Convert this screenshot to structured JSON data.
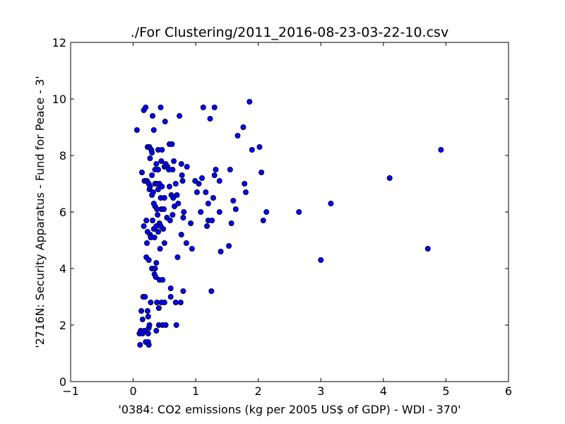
{
  "chart_data": {
    "type": "scatter",
    "title": "./For Clustering/2011_2016-08-23-03-22-10.csv",
    "xlabel": "'0384: CO2 emissions  (kg per 2005 US$ of GDP) - WDI - 370'",
    "ylabel": "'2716N: Security Apparatus - Fund for Peace - 3'",
    "xlim": [
      -1,
      6
    ],
    "ylim": [
      0,
      12
    ],
    "xticks": [
      -1,
      0,
      1,
      2,
      3,
      4,
      5,
      6
    ],
    "yticks": [
      0,
      2,
      4,
      6,
      8,
      10,
      12
    ],
    "grid": false,
    "marker_color": "#0000ff",
    "series": [
      {
        "points": [
          [
            0.06,
            8.9
          ],
          [
            0.1,
            1.7
          ],
          [
            0.11,
            1.3
          ],
          [
            0.12,
            1.8
          ],
          [
            0.13,
            2.5
          ],
          [
            0.14,
            7.4
          ],
          [
            0.15,
            1.7
          ],
          [
            0.15,
            2.2
          ],
          [
            0.16,
            3.0
          ],
          [
            0.17,
            9.6
          ],
          [
            0.17,
            5.5
          ],
          [
            0.18,
            7.1
          ],
          [
            0.18,
            1.8
          ],
          [
            0.19,
            3.0
          ],
          [
            0.2,
            9.7
          ],
          [
            0.2,
            1.4
          ],
          [
            0.21,
            5.7
          ],
          [
            0.21,
            4.4
          ],
          [
            0.22,
            4.9
          ],
          [
            0.22,
            7.1
          ],
          [
            0.23,
            8.3
          ],
          [
            0.23,
            5.3
          ],
          [
            0.23,
            2.5
          ],
          [
            0.24,
            1.7
          ],
          [
            0.24,
            1.4
          ],
          [
            0.24,
            2.3
          ],
          [
            0.25,
            7.0
          ],
          [
            0.25,
            1.9
          ],
          [
            0.25,
            1.3
          ],
          [
            0.25,
            4.3
          ],
          [
            0.26,
            8.3
          ],
          [
            0.26,
            6.8
          ],
          [
            0.26,
            2.0
          ],
          [
            0.27,
            7.9
          ],
          [
            0.27,
            6.9
          ],
          [
            0.27,
            5.2
          ],
          [
            0.28,
            5.1
          ],
          [
            0.28,
            2.8
          ],
          [
            0.29,
            8.2
          ],
          [
            0.3,
            8.1
          ],
          [
            0.3,
            7.3
          ],
          [
            0.3,
            6.6
          ],
          [
            0.3,
            4.0
          ],
          [
            0.31,
            9.4
          ],
          [
            0.31,
            5.7
          ],
          [
            0.32,
            6.7
          ],
          [
            0.33,
            8.9
          ],
          [
            0.33,
            6.3
          ],
          [
            0.33,
            5.4
          ],
          [
            0.34,
            3.8
          ],
          [
            0.34,
            5.1
          ],
          [
            0.35,
            7.5
          ],
          [
            0.35,
            7.0
          ],
          [
            0.35,
            6.2
          ],
          [
            0.35,
            4.0
          ],
          [
            0.36,
            3.7
          ],
          [
            0.37,
            7.7
          ],
          [
            0.37,
            5.5
          ],
          [
            0.37,
            4.2
          ],
          [
            0.37,
            1.8
          ],
          [
            0.38,
            7.0
          ],
          [
            0.38,
            6.1
          ],
          [
            0.38,
            2.8
          ],
          [
            0.39,
            5.9
          ],
          [
            0.4,
            8.2
          ],
          [
            0.4,
            7.5
          ],
          [
            0.4,
            6.8
          ],
          [
            0.4,
            5.3
          ],
          [
            0.41,
            2.6
          ],
          [
            0.41,
            2.0
          ],
          [
            0.42,
            7.0
          ],
          [
            0.42,
            5.6
          ],
          [
            0.42,
            3.6
          ],
          [
            0.43,
            4.7
          ],
          [
            0.44,
            9.7
          ],
          [
            0.44,
            6.5
          ],
          [
            0.44,
            5.5
          ],
          [
            0.45,
            7.8
          ],
          [
            0.45,
            6.1
          ],
          [
            0.45,
            2.8
          ],
          [
            0.46,
            8.2
          ],
          [
            0.46,
            6.9
          ],
          [
            0.47,
            2.0
          ],
          [
            0.47,
            3.6
          ],
          [
            0.48,
            5.4
          ],
          [
            0.49,
            6.1
          ],
          [
            0.5,
            7.6
          ],
          [
            0.5,
            6.5
          ],
          [
            0.5,
            4.9
          ],
          [
            0.5,
            2.8
          ],
          [
            0.51,
            9.2
          ],
          [
            0.52,
            7.7
          ],
          [
            0.52,
            2.0
          ],
          [
            0.54,
            5.8
          ],
          [
            0.55,
            7.6
          ],
          [
            0.57,
            7.5
          ],
          [
            0.58,
            8.4
          ],
          [
            0.58,
            6.9
          ],
          [
            0.59,
            5.7
          ],
          [
            0.6,
            3.3
          ],
          [
            0.6,
            3.0
          ],
          [
            0.61,
            6.6
          ],
          [
            0.62,
            8.4
          ],
          [
            0.63,
            7.5
          ],
          [
            0.63,
            5.9
          ],
          [
            0.64,
            6.5
          ],
          [
            0.65,
            7.8
          ],
          [
            0.66,
            6.2
          ],
          [
            0.68,
            7.0
          ],
          [
            0.68,
            2.8
          ],
          [
            0.69,
            2.0
          ],
          [
            0.7,
            6.6
          ],
          [
            0.71,
            4.4
          ],
          [
            0.72,
            6.3
          ],
          [
            0.74,
            9.4
          ],
          [
            0.76,
            2.8
          ],
          [
            0.77,
            7.7
          ],
          [
            0.77,
            5.2
          ],
          [
            0.78,
            7.3
          ],
          [
            0.79,
            7.1
          ],
          [
            0.8,
            5.8
          ],
          [
            0.8,
            3.2
          ],
          [
            0.81,
            6.0
          ],
          [
            0.85,
            4.9
          ],
          [
            0.86,
            7.6
          ],
          [
            0.92,
            5.6
          ],
          [
            0.94,
            4.7
          ],
          [
            0.99,
            7.1
          ],
          [
            1.02,
            6.7
          ],
          [
            1.05,
            7.0
          ],
          [
            1.08,
            6.0
          ],
          [
            1.1,
            7.2
          ],
          [
            1.12,
            9.7
          ],
          [
            1.16,
            6.7
          ],
          [
            1.18,
            5.5
          ],
          [
            1.2,
            6.3
          ],
          [
            1.2,
            5.7
          ],
          [
            1.23,
            9.3
          ],
          [
            1.25,
            3.2
          ],
          [
            1.26,
            5.7
          ],
          [
            1.28,
            6.5
          ],
          [
            1.3,
            9.7
          ],
          [
            1.3,
            7.3
          ],
          [
            1.32,
            7.5
          ],
          [
            1.38,
            7.1
          ],
          [
            1.38,
            6.0
          ],
          [
            1.4,
            4.6
          ],
          [
            1.53,
            4.8
          ],
          [
            1.55,
            7.5
          ],
          [
            1.57,
            5.6
          ],
          [
            1.6,
            6.4
          ],
          [
            1.64,
            6.1
          ],
          [
            1.67,
            8.7
          ],
          [
            1.76,
            9.0
          ],
          [
            1.78,
            7.0
          ],
          [
            1.8,
            6.7
          ],
          [
            1.86,
            9.9
          ],
          [
            1.9,
            8.2
          ],
          [
            2.02,
            8.3
          ],
          [
            2.05,
            7.4
          ],
          [
            2.08,
            5.7
          ],
          [
            2.13,
            6.0
          ],
          [
            2.65,
            6.0
          ],
          [
            3.0,
            4.3
          ],
          [
            3.16,
            6.3
          ],
          [
            4.1,
            7.2
          ],
          [
            4.71,
            4.7
          ],
          [
            4.92,
            8.2
          ]
        ]
      }
    ]
  }
}
